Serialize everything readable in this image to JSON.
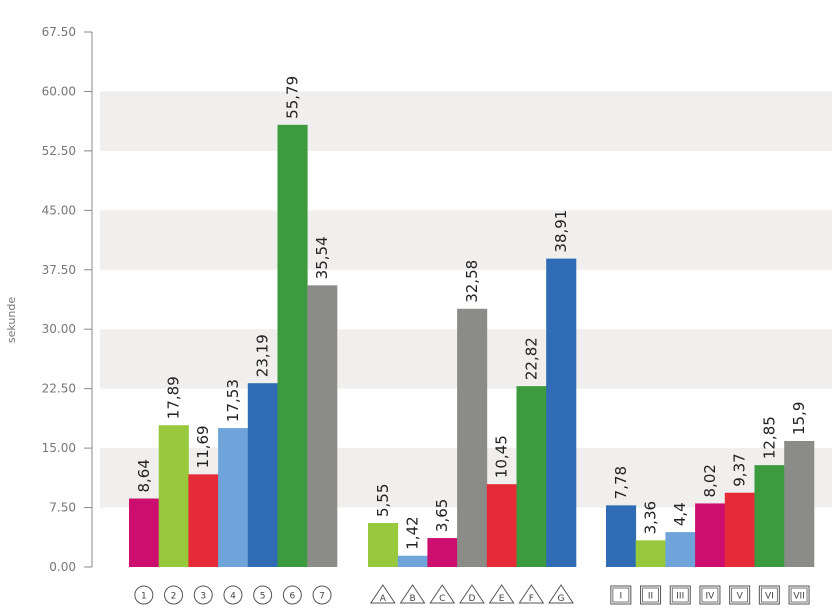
{
  "chart_data": {
    "type": "bar",
    "ylabel": "sekunde",
    "ylim": [
      0,
      67.5
    ],
    "yticks": [
      "0.00",
      "7.50",
      "15.00",
      "22.50",
      "30.00",
      "37.50",
      "45.00",
      "52.50",
      "60.00",
      "67.50"
    ],
    "groups": [
      {
        "categories": [
          "1",
          "2",
          "3",
          "4",
          "5",
          "6",
          "7"
        ],
        "marker": "circle",
        "values": [
          8.64,
          17.89,
          11.69,
          17.53,
          23.19,
          55.79,
          35.54
        ],
        "labels": [
          "8,64",
          "17,89",
          "11,69",
          "17,53",
          "23,19",
          "55,79",
          "35,54"
        ],
        "colors": [
          "#cc0f6e",
          "#98c83c",
          "#e52b38",
          "#6fa4da",
          "#2f6cb5",
          "#3b9b3e",
          "#8b8c88"
        ]
      },
      {
        "categories": [
          "A",
          "B",
          "C",
          "D",
          "E",
          "F",
          "G"
        ],
        "marker": "triangle",
        "values": [
          5.55,
          1.42,
          3.65,
          32.58,
          10.45,
          22.82,
          38.91
        ],
        "labels": [
          "5,55",
          "1,42",
          "3,65",
          "32,58",
          "10,45",
          "22,82",
          "38,91"
        ],
        "colors": [
          "#98c83c",
          "#6fa4da",
          "#cc0f6e",
          "#8b8c88",
          "#e52b38",
          "#3b9b3e",
          "#2f6cb5"
        ]
      },
      {
        "categories": [
          "I",
          "II",
          "III",
          "IV",
          "V",
          "VI",
          "VII"
        ],
        "marker": "square",
        "values": [
          7.78,
          3.36,
          4.4,
          8.02,
          9.37,
          12.85,
          15.9
        ],
        "labels": [
          "7,78",
          "3,36",
          "4,4",
          "8,02",
          "9,37",
          "12,85",
          "15,9"
        ],
        "colors": [
          "#2f6cb5",
          "#98c83c",
          "#6fa4da",
          "#cc0f6e",
          "#e52b38",
          "#3b9b3e",
          "#8b8c88"
        ]
      }
    ],
    "grid": true,
    "band_color": "#f0efed"
  }
}
